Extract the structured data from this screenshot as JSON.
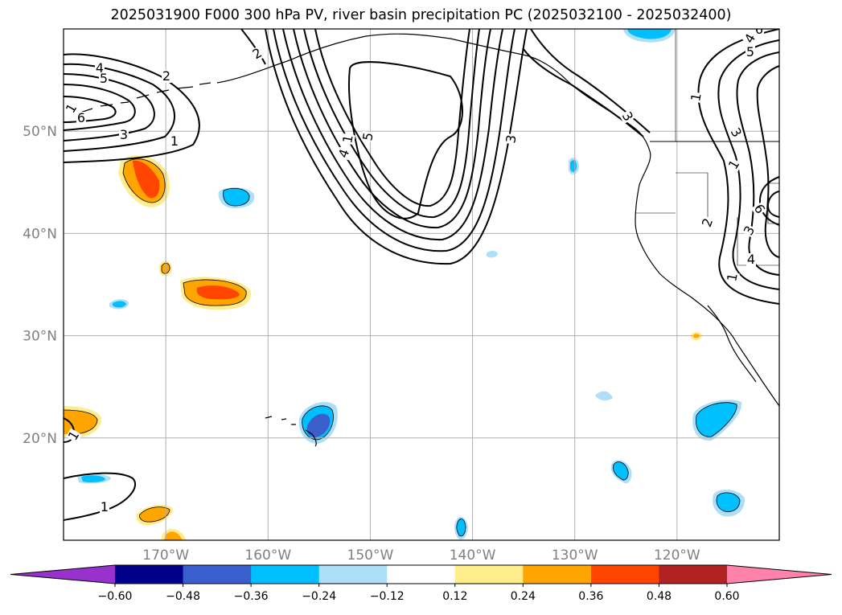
{
  "title": "2025031900 F000 300 hPa PV, river basin precipitation PC (2025032100 - 2025032400)",
  "map": {
    "lon_range": [
      -180,
      -110
    ],
    "lat_range": [
      10,
      60
    ],
    "lat_ticks": [
      {
        "value": 50,
        "label": "50°N"
      },
      {
        "value": 40,
        "label": "40°N"
      },
      {
        "value": 30,
        "label": "30°N"
      },
      {
        "value": 20,
        "label": "20°N"
      }
    ],
    "lon_ticks": [
      {
        "value": -170,
        "label": "170°W"
      },
      {
        "value": -160,
        "label": "160°W"
      },
      {
        "value": -150,
        "label": "150°W"
      },
      {
        "value": -140,
        "label": "140°W"
      },
      {
        "value": -130,
        "label": "130°W"
      },
      {
        "value": -120,
        "label": "120°W"
      }
    ],
    "grid": true,
    "contour_labels": [
      "4",
      "5",
      "6",
      "1",
      "3",
      "1",
      "2",
      "2",
      "4",
      "5",
      "1",
      "3",
      "3",
      "1",
      "1",
      "5",
      "4",
      "6",
      "1",
      "3",
      "2",
      "3",
      "4",
      "6",
      "1",
      "1"
    ]
  },
  "colorbar": {
    "ticks": [
      "−0.60",
      "−0.48",
      "−0.36",
      "−0.24",
      "−0.12",
      "0.12",
      "0.24",
      "0.36",
      "0.48",
      "0.60"
    ],
    "colors": [
      "#9932CC",
      "#00008B",
      "#3A5FCD",
      "#00BFFF",
      "#ADE0F8",
      "#FFFFFF",
      "#FFEC8B",
      "#FFA500",
      "#FF4500",
      "#B22222",
      "#FF82AB"
    ]
  }
}
